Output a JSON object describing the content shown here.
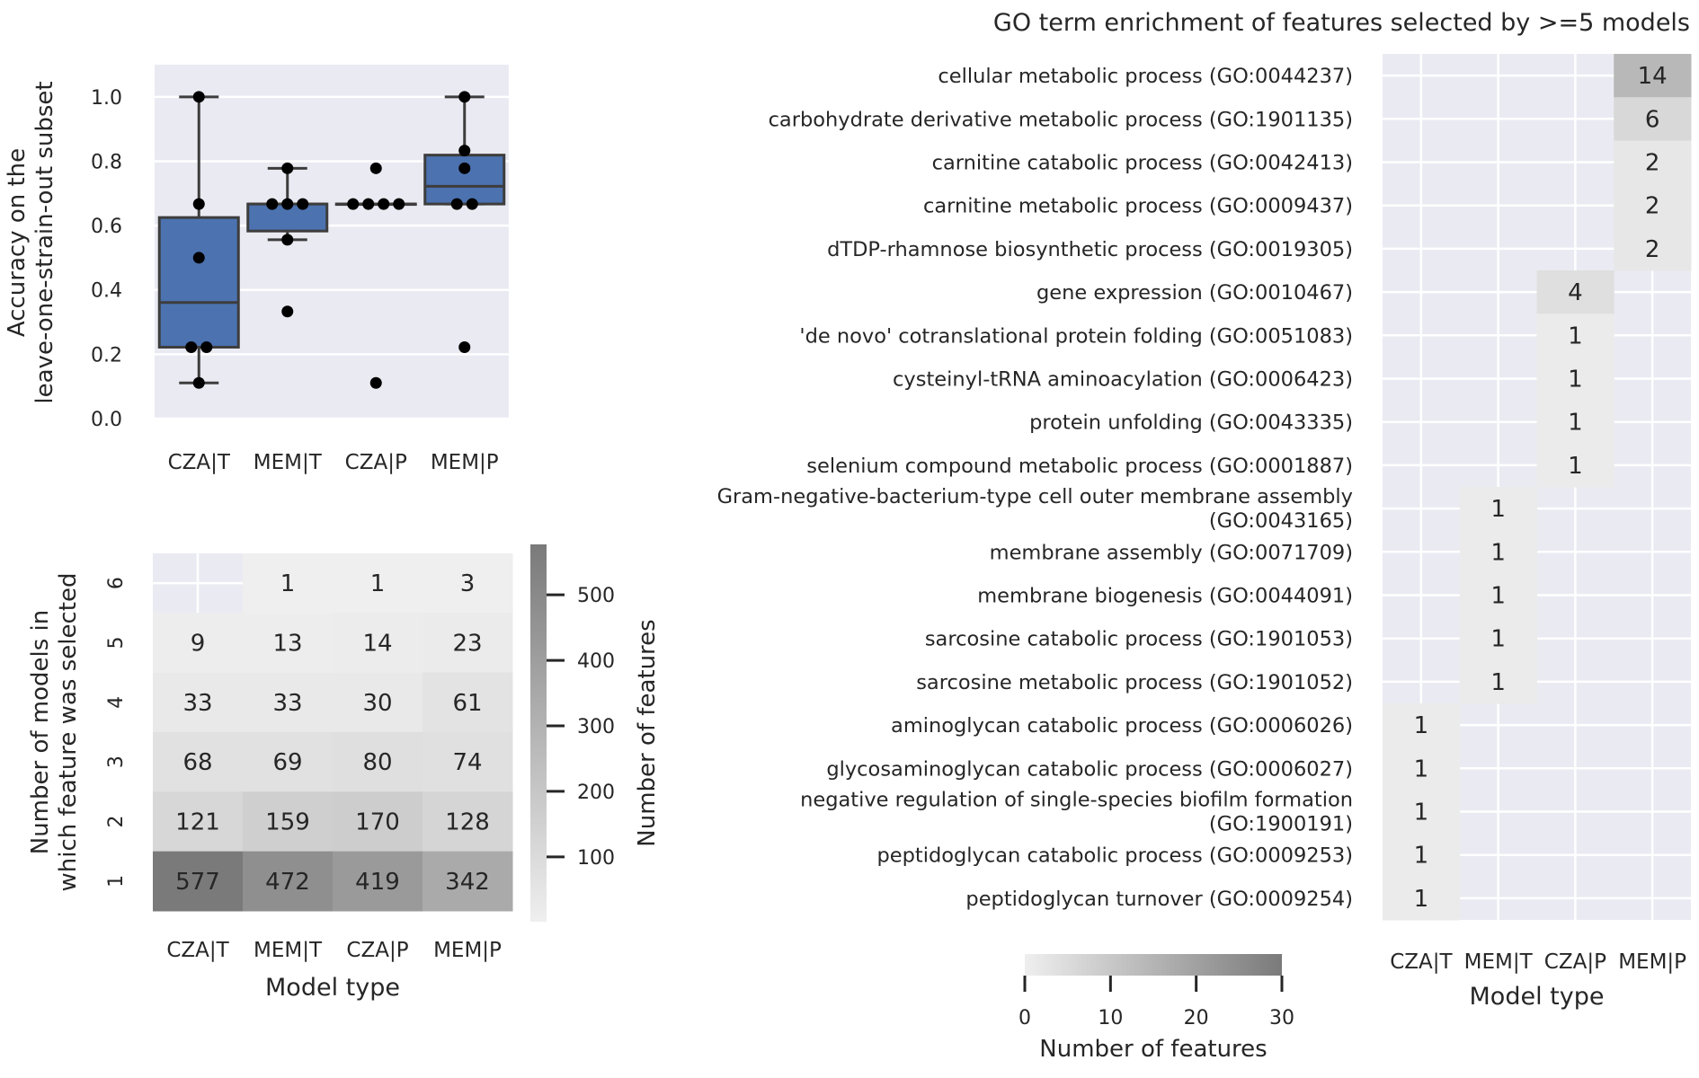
{
  "chart_data": [
    {
      "type": "box",
      "ylabel": "Accuracy on the\nleave-one-strain-out subset",
      "ylim": [
        0.0,
        1.1
      ],
      "yticks": [
        "0.0",
        "0.2",
        "0.4",
        "0.6",
        "0.8",
        "1.0"
      ],
      "categories": [
        "CZA|T",
        "MEM|T",
        "CZA|P",
        "MEM|P"
      ],
      "box_color": "#4c72b0",
      "boxes": [
        {
          "q1": 0.222,
          "median": 0.361,
          "q3": 0.625,
          "whisker_low": 0.111,
          "whisker_high": 1.0
        },
        {
          "q1": 0.583,
          "median": 0.667,
          "q3": 0.667,
          "whisker_low": 0.556,
          "whisker_high": 0.778
        },
        {
          "q1": 0.667,
          "median": 0.667,
          "q3": 0.667,
          "whisker_low": 0.667,
          "whisker_high": 0.667
        },
        {
          "q1": 0.667,
          "median": 0.722,
          "q3": 0.819,
          "whisker_low": 0.667,
          "whisker_high": 1.0
        }
      ],
      "points": [
        [
          1.0,
          0.667,
          0.5,
          0.222,
          0.222,
          0.111
        ],
        [
          0.778,
          0.667,
          0.667,
          0.667,
          0.556,
          0.333
        ],
        [
          0.778,
          0.667,
          0.667,
          0.667,
          0.667,
          0.111
        ],
        [
          1.0,
          0.833,
          0.778,
          0.667,
          0.667,
          0.222
        ]
      ]
    },
    {
      "type": "heatmap",
      "xlabel": "Model type",
      "ylabel": "Number of models in\nwhich feature was selected",
      "x": [
        "CZA|T",
        "MEM|T",
        "CZA|P",
        "MEM|P"
      ],
      "y": [
        "6",
        "5",
        "4",
        "3",
        "2",
        "1"
      ],
      "values": [
        [
          null,
          1,
          1,
          3
        ],
        [
          9,
          13,
          14,
          23
        ],
        [
          33,
          33,
          30,
          61
        ],
        [
          68,
          69,
          80,
          74
        ],
        [
          121,
          159,
          170,
          128
        ],
        [
          577,
          472,
          419,
          342
        ]
      ],
      "colorbar": {
        "label": "Number of features",
        "range": [
          1,
          577
        ],
        "ticks": [
          100,
          200,
          300,
          400,
          500
        ]
      }
    },
    {
      "type": "heatmap",
      "title": "GO term enrichment of features selected by >=5 models",
      "xlabel": "Model type",
      "x": [
        "CZA|T",
        "MEM|T",
        "CZA|P",
        "MEM|P"
      ],
      "y": [
        "cellular metabolic process (GO:0044237)",
        "carbohydrate derivative metabolic process (GO:1901135)",
        "carnitine catabolic process (GO:0042413)",
        "carnitine metabolic process (GO:0009437)",
        "dTDP-rhamnose biosynthetic process (GO:0019305)",
        "gene expression (GO:0010467)",
        "'de novo' cotranslational protein folding (GO:0051083)",
        "cysteinyl-tRNA aminoacylation (GO:0006423)",
        "protein unfolding (GO:0043335)",
        "selenium compound metabolic process (GO:0001887)",
        "Gram-negative-bacterium-type cell outer membrane assembly\n(GO:0043165)",
        "membrane assembly (GO:0071709)",
        "membrane biogenesis (GO:0044091)",
        "sarcosine catabolic process (GO:1901053)",
        "sarcosine metabolic process (GO:1901052)",
        "aminoglycan catabolic process (GO:0006026)",
        "glycosaminoglycan catabolic process (GO:0006027)",
        "negative regulation of single-species biofilm formation\n(GO:1900191)",
        "peptidoglycan catabolic process (GO:0009253)",
        "peptidoglycan turnover (GO:0009254)"
      ],
      "values": [
        [
          null,
          null,
          null,
          14
        ],
        [
          null,
          null,
          null,
          6
        ],
        [
          null,
          null,
          null,
          2
        ],
        [
          null,
          null,
          null,
          2
        ],
        [
          null,
          null,
          null,
          2
        ],
        [
          null,
          null,
          4,
          null
        ],
        [
          null,
          null,
          1,
          null
        ],
        [
          null,
          null,
          1,
          null
        ],
        [
          null,
          null,
          1,
          null
        ],
        [
          null,
          null,
          1,
          null
        ],
        [
          null,
          1,
          null,
          null
        ],
        [
          null,
          1,
          null,
          null
        ],
        [
          null,
          1,
          null,
          null
        ],
        [
          null,
          1,
          null,
          null
        ],
        [
          null,
          1,
          null,
          null
        ],
        [
          1,
          null,
          null,
          null
        ],
        [
          1,
          null,
          null,
          null
        ],
        [
          1,
          null,
          null,
          null
        ],
        [
          1,
          null,
          null,
          null
        ],
        [
          1,
          null,
          null,
          null
        ]
      ],
      "colorbar": {
        "label": "Number of features",
        "range": [
          0,
          30
        ],
        "ticks": [
          0,
          10,
          20,
          30
        ],
        "orientation": "horizontal"
      }
    }
  ],
  "colors": {
    "axes_bg": "#eaeaf2",
    "grid": "#ffffff",
    "text": "#262626",
    "box": "#4c72b0",
    "point": "#000000"
  }
}
